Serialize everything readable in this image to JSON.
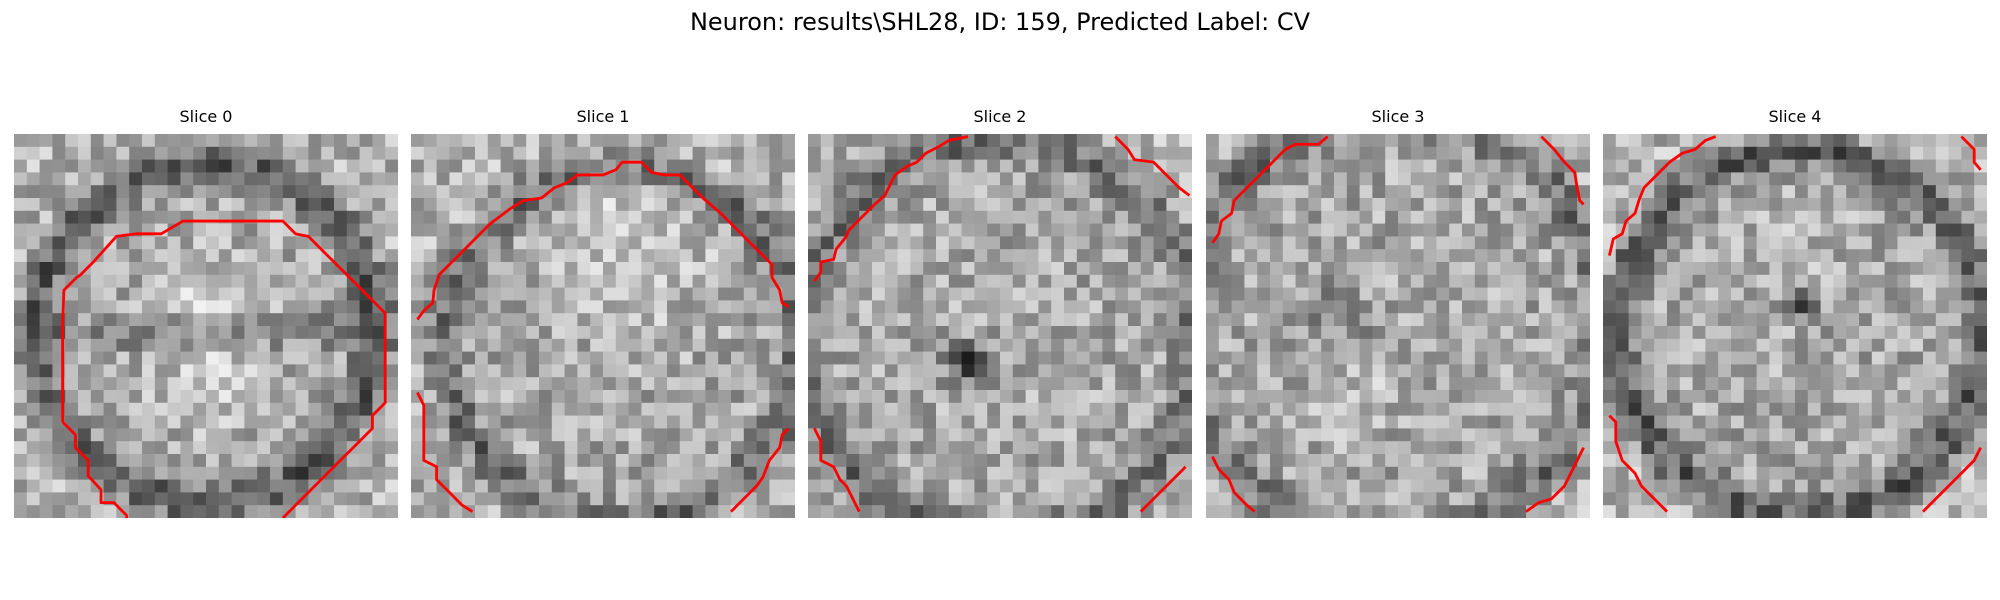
{
  "figure": {
    "title": "Neuron: results\\SHL28, ID: 159, Predicted Label: CV"
  },
  "panels": [
    {
      "title": "Slice 0"
    },
    {
      "title": "Slice 1"
    },
    {
      "title": "Slice 2"
    },
    {
      "title": "Slice 3"
    },
    {
      "title": "Slice 4"
    }
  ],
  "colors": {
    "contour": "#ff0000",
    "background": "#ffffff"
  }
}
